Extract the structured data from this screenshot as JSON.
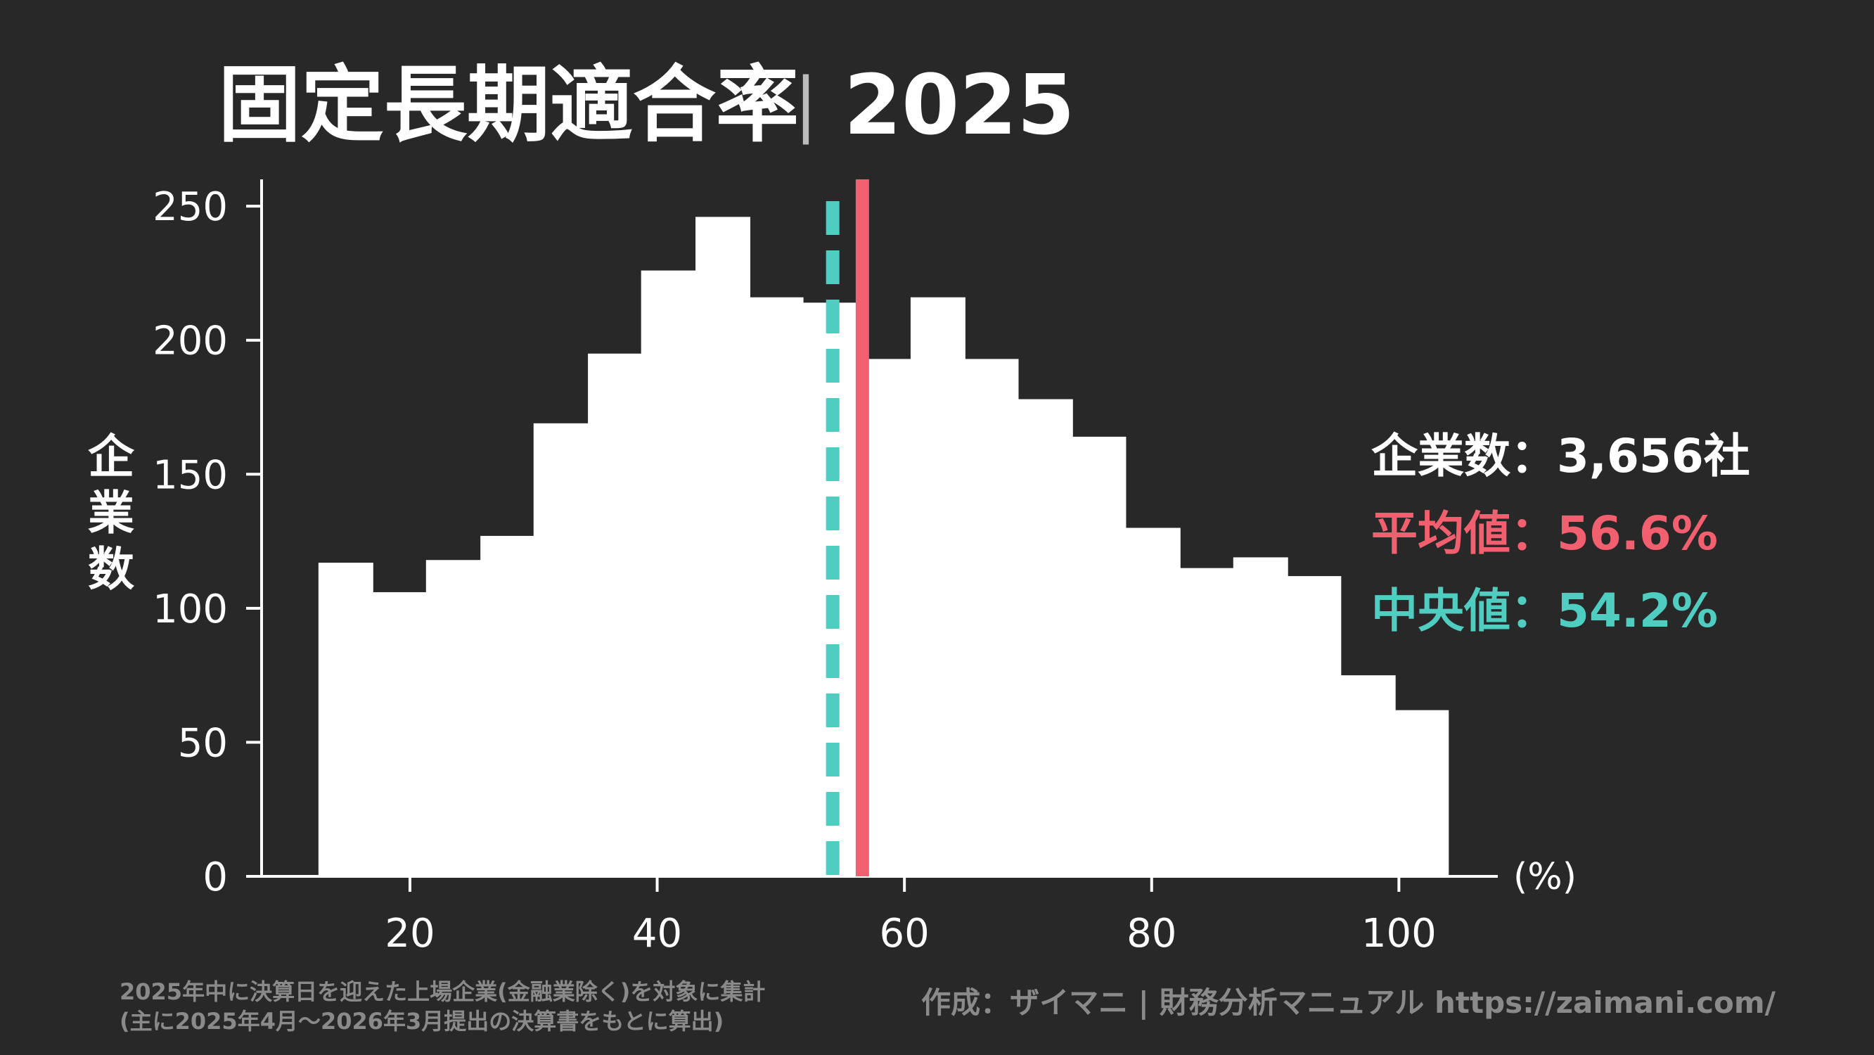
{
  "title": {
    "main": "固定長期適合率",
    "separator": "|",
    "year": "2025"
  },
  "stats": {
    "count_label": "企業数",
    "count_value": "3,656社",
    "mean_label": "平均値",
    "mean_value": "56.6%",
    "median_label": "中央値",
    "median_value": "54.2%",
    "separator": "："
  },
  "footnote": {
    "line1": "2025年中に決算日を迎えた上場企業(金融業除く)を対象に集計",
    "line2": "(主に2025年4月〜2026年3月提出の決算書をもとに算出)"
  },
  "credit": "作成：ザイマニ | 財務分析マニュアル https://zaimani.com/",
  "colors": {
    "background": "#282828",
    "bars": "#ffffff",
    "mean": "#f25f6f",
    "median": "#4ecdc0",
    "muted": "#8a8a8a"
  },
  "chart_data": {
    "type": "bar",
    "ylabel": "企業数",
    "xunit": "(%)",
    "xlim": [
      8,
      108
    ],
    "ylim": [
      0,
      260
    ],
    "xticks": [
      20,
      40,
      60,
      80,
      100
    ],
    "yticks": [
      0,
      50,
      100,
      150,
      200,
      250
    ],
    "bins": [
      {
        "x0": 12.6,
        "x1": 17.0,
        "value": 117
      },
      {
        "x0": 17.0,
        "x1": 21.3,
        "value": 106
      },
      {
        "x0": 21.3,
        "x1": 25.7,
        "value": 118
      },
      {
        "x0": 25.7,
        "x1": 30.0,
        "value": 127
      },
      {
        "x0": 30.0,
        "x1": 34.4,
        "value": 169
      },
      {
        "x0": 34.4,
        "x1": 38.7,
        "value": 195
      },
      {
        "x0": 38.7,
        "x1": 43.1,
        "value": 226
      },
      {
        "x0": 43.1,
        "x1": 47.5,
        "value": 246
      },
      {
        "x0": 47.5,
        "x1": 51.8,
        "value": 216
      },
      {
        "x0": 51.8,
        "x1": 56.2,
        "value": 214
      },
      {
        "x0": 56.2,
        "x1": 60.5,
        "value": 193
      },
      {
        "x0": 60.5,
        "x1": 64.9,
        "value": 216
      },
      {
        "x0": 64.9,
        "x1": 69.2,
        "value": 193
      },
      {
        "x0": 69.2,
        "x1": 73.6,
        "value": 178
      },
      {
        "x0": 73.6,
        "x1": 77.9,
        "value": 164
      },
      {
        "x0": 77.9,
        "x1": 82.3,
        "value": 130
      },
      {
        "x0": 82.3,
        "x1": 86.6,
        "value": 115
      },
      {
        "x0": 86.6,
        "x1": 91.0,
        "value": 119
      },
      {
        "x0": 91.0,
        "x1": 95.3,
        "value": 112
      },
      {
        "x0": 95.3,
        "x1": 99.7,
        "value": 75
      },
      {
        "x0": 99.7,
        "x1": 104.0,
        "value": 62
      }
    ],
    "mean": 56.6,
    "median": 54.2
  }
}
